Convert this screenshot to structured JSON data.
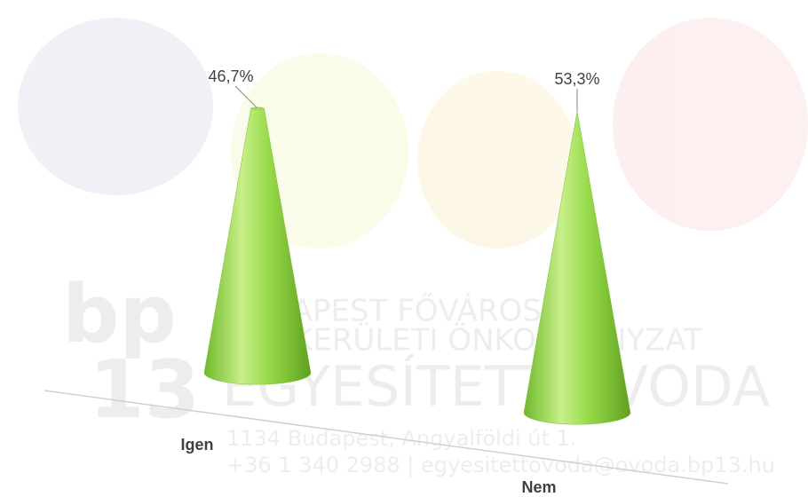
{
  "watermark": {
    "logo_top": "bp",
    "logo_bottom": "13",
    "line1": "BUDAPEST FŐVÁROS",
    "line2": "XIII. KERÜLETI ÖNKORMÁNYZAT",
    "line3": "EGYESÍTETT ÓVODA",
    "line4": "1134 Budapest, Angyalföldi út 1.",
    "line5": "+36 1 340 2988 | egyesitettovoda@ovoda.bp13.hu"
  },
  "chart_data": {
    "type": "cone",
    "categories": [
      "Igen",
      "Nem"
    ],
    "values": [
      46.7,
      53.3
    ],
    "value_labels": [
      "46,7%",
      "53,3%"
    ],
    "color": "#92d050"
  }
}
